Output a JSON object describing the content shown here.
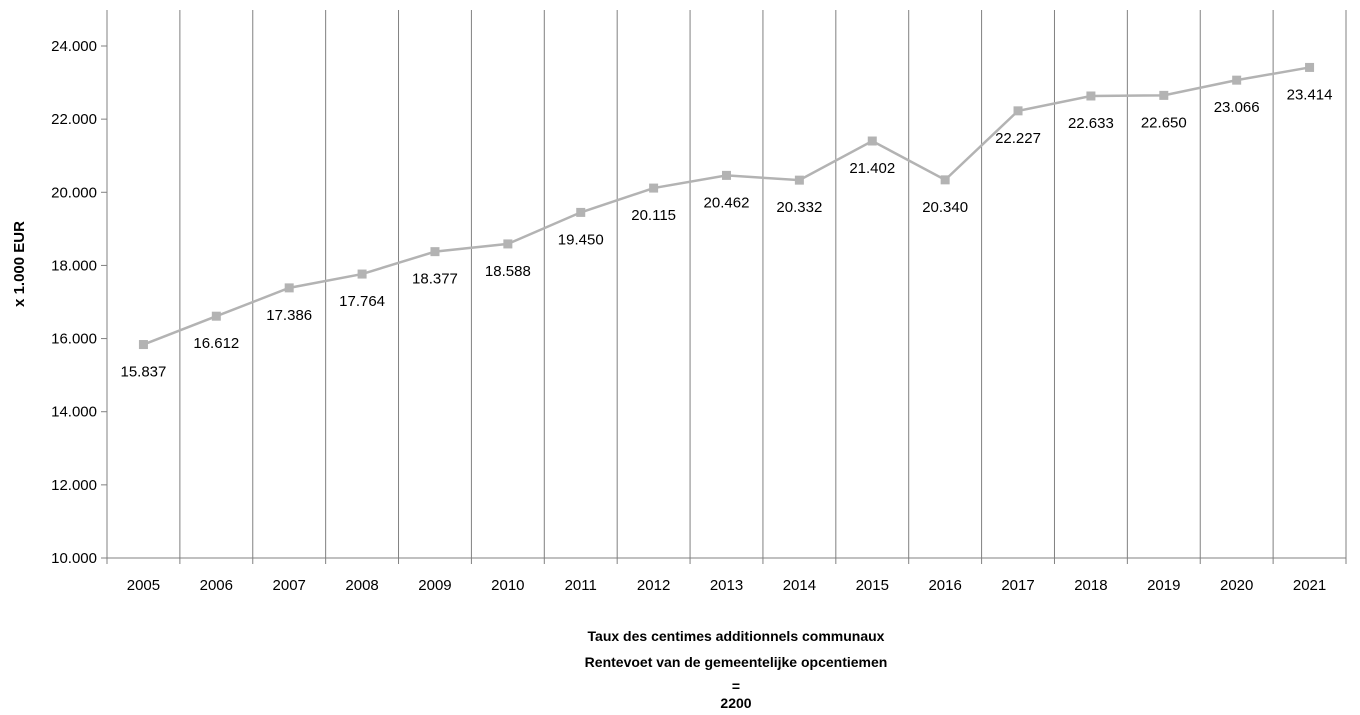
{
  "chart_data": {
    "type": "line",
    "categories": [
      "2005",
      "2006",
      "2007",
      "2008",
      "2009",
      "2010",
      "2011",
      "2012",
      "2013",
      "2014",
      "2015",
      "2016",
      "2017",
      "2018",
      "2019",
      "2020",
      "2021"
    ],
    "series": [
      {
        "values": [
          15837,
          16612,
          17386,
          17764,
          18377,
          18588,
          19450,
          20115,
          20462,
          20332,
          21402,
          20340,
          22227,
          22633,
          22650,
          23066,
          23414
        ]
      }
    ],
    "data_labels": [
      "15.837",
      "16.612",
      "17.386",
      "17.764",
      "18.377",
      "18.588",
      "19.450",
      "20.115",
      "20.462",
      "20.332",
      "21.402",
      "20.340",
      "22.227",
      "22.633",
      "22.650",
      "23.066",
      "23.414"
    ],
    "ylabel": "x 1.000 EUR",
    "ylim": [
      10000,
      24000
    ],
    "yticks": [
      10000,
      12000,
      14000,
      16000,
      18000,
      20000,
      22000,
      24000
    ],
    "ytick_labels": [
      "10.000",
      "12.000",
      "14.000",
      "16.000",
      "18.000",
      "20.000",
      "22.000",
      "24.000"
    ],
    "grid": "vertical",
    "line_color": "#b3b3b3",
    "grid_color": "#808080"
  },
  "caption": {
    "line1": "Taux des centimes additionnels  communaux",
    "line2": "Rentevoet   van de gemeentelijke opcentiemen",
    "line3": "=",
    "line4": "2200"
  }
}
